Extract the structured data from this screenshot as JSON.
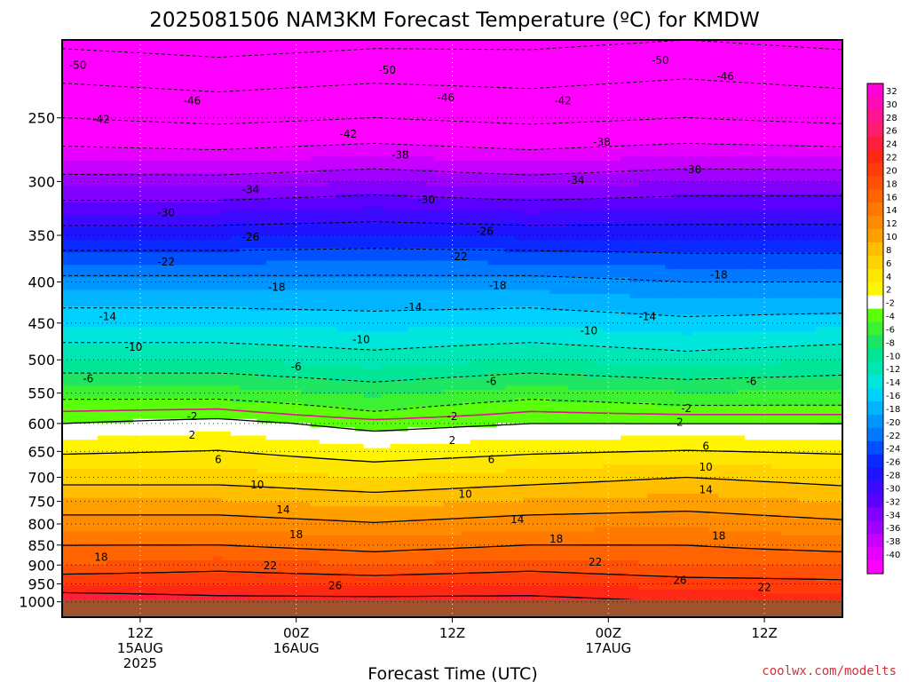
{
  "header": {
    "title": "2025081506 NAM3KM Forecast Temperature (ºC) for KMDW"
  },
  "footer": {
    "xlabel": "Forecast Time (UTC)",
    "credit": "coolwx.com/modelts"
  },
  "chart_data": {
    "type": "heatmap",
    "title": "2025081506 NAM3KM Forecast Temperature (ºC) for KMDW",
    "xlabel": "Forecast Time (UTC)",
    "ylabel": "",
    "y_scale": "log-pressure",
    "y_unit": "hPa",
    "ylim": [
      1000,
      200
    ],
    "y_ticks": [
      250,
      300,
      350,
      400,
      450,
      500,
      550,
      600,
      650,
      700,
      750,
      800,
      850,
      900,
      950,
      1000
    ],
    "x_range_hours": [
      0,
      60
    ],
    "x_ticks": [
      {
        "hour": 6,
        "label": [
          "12Z",
          "15AUG",
          "2025"
        ]
      },
      {
        "hour": 18,
        "label": [
          "00Z",
          "16AUG"
        ]
      },
      {
        "hour": 30,
        "label": [
          "12Z"
        ]
      },
      {
        "hour": 42,
        "label": [
          "00Z",
          "17AUG"
        ]
      },
      {
        "hour": 54,
        "label": [
          "12Z"
        ]
      }
    ],
    "grid": true,
    "colorbar": {
      "placement": "right",
      "labels": [
        32,
        30,
        28,
        26,
        24,
        22,
        20,
        18,
        16,
        14,
        12,
        10,
        8,
        6,
        4,
        2,
        -2,
        -4,
        -6,
        -8,
        -10,
        -12,
        -14,
        -16,
        -18,
        -20,
        -22,
        -24,
        -26,
        -28,
        -30,
        -32,
        -34,
        -36,
        -38,
        -40
      ],
      "colors": [
        "#ff00d8",
        "#ff0ab6",
        "#ff1492",
        "#ff1e6e",
        "#ff1e3c",
        "#ff2814",
        "#ff3c0a",
        "#ff5005",
        "#ff6400",
        "#ff7800",
        "#ff8c00",
        "#ffa000",
        "#ffbe00",
        "#ffd200",
        "#ffe600",
        "#fff500",
        "#ffffff",
        "#5aff0a",
        "#3cf032",
        "#1ee664",
        "#00e696",
        "#00e6b4",
        "#00e6dc",
        "#00d2ff",
        "#00b4ff",
        "#0096ff",
        "#0078ff",
        "#0050ff",
        "#0a28ff",
        "#1e14ff",
        "#3c0aff",
        "#5a00ff",
        "#8200ff",
        "#a000ff",
        "#c800ff",
        "#e600ff",
        "#ff00ff"
      ]
    },
    "hours": [
      0,
      12,
      24,
      36,
      48,
      60
    ],
    "profiles": [
      {
        "hour": 0,
        "levels": [
          [
            1000,
            28
          ],
          [
            900,
            20
          ],
          [
            850,
            18
          ],
          [
            700,
            9
          ],
          [
            600,
            2
          ],
          [
            560,
            -2
          ],
          [
            500,
            -8
          ],
          [
            400,
            -17
          ],
          [
            300,
            -33
          ],
          [
            250,
            -42
          ],
          [
            200,
            -51
          ]
        ]
      },
      {
        "hour": 12,
        "levels": [
          [
            1000,
            27
          ],
          [
            900,
            21
          ],
          [
            850,
            18
          ],
          [
            700,
            9
          ],
          [
            600,
            3
          ],
          [
            560,
            -2
          ],
          [
            500,
            -8
          ],
          [
            400,
            -17
          ],
          [
            300,
            -33
          ],
          [
            250,
            -43
          ],
          [
            200,
            -52
          ]
        ]
      },
      {
        "hour": 24,
        "levels": [
          [
            1000,
            27
          ],
          [
            900,
            20
          ],
          [
            850,
            17
          ],
          [
            700,
            8
          ],
          [
            600,
            1
          ],
          [
            580,
            -2
          ],
          [
            500,
            -9
          ],
          [
            400,
            -17
          ],
          [
            300,
            -32
          ],
          [
            250,
            -42
          ],
          [
            200,
            -51
          ]
        ]
      },
      {
        "hour": 36,
        "levels": [
          [
            1000,
            27
          ],
          [
            900,
            21
          ],
          [
            850,
            18
          ],
          [
            700,
            9
          ],
          [
            600,
            2
          ],
          [
            560,
            -2
          ],
          [
            500,
            -8
          ],
          [
            400,
            -17
          ],
          [
            300,
            -33
          ],
          [
            250,
            -43
          ],
          [
            200,
            -51
          ]
        ]
      },
      {
        "hour": 48,
        "levels": [
          [
            1000,
            26
          ],
          [
            900,
            20
          ],
          [
            850,
            18
          ],
          [
            700,
            10
          ],
          [
            600,
            2
          ],
          [
            570,
            -2
          ],
          [
            500,
            -9
          ],
          [
            400,
            -18
          ],
          [
            300,
            -32
          ],
          [
            250,
            -42
          ],
          [
            200,
            -50
          ]
        ]
      },
      {
        "hour": 60,
        "levels": [
          [
            1000,
            25
          ],
          [
            900,
            20
          ],
          [
            850,
            17
          ],
          [
            700,
            9
          ],
          [
            600,
            2
          ],
          [
            570,
            -2
          ],
          [
            500,
            -8
          ],
          [
            400,
            -18
          ],
          [
            300,
            -32
          ],
          [
            250,
            -43
          ],
          [
            200,
            -51
          ]
        ]
      }
    ],
    "contour_labels": [
      {
        "text": "-50",
        "hour": 1.2,
        "p": 215
      },
      {
        "text": "-50",
        "hour": 25,
        "p": 218
      },
      {
        "text": "-50",
        "hour": 46,
        "p": 212
      },
      {
        "text": "-46",
        "hour": 10,
        "p": 238
      },
      {
        "text": "-46",
        "hour": 29.5,
        "p": 236
      },
      {
        "text": "-46",
        "hour": 51,
        "p": 222
      },
      {
        "text": "-42",
        "hour": 3,
        "p": 251
      },
      {
        "text": "-42",
        "hour": 22,
        "p": 262
      },
      {
        "text": "-42",
        "hour": 38.5,
        "p": 238
      },
      {
        "text": "-38",
        "hour": 26,
        "p": 278
      },
      {
        "text": "-38",
        "hour": 41.5,
        "p": 268
      },
      {
        "text": "-34",
        "hour": 14.5,
        "p": 307
      },
      {
        "text": "-34",
        "hour": 39.5,
        "p": 299
      },
      {
        "text": "-30",
        "hour": 8,
        "p": 328
      },
      {
        "text": "-30",
        "hour": 28,
        "p": 316
      },
      {
        "text": "-30",
        "hour": 48.5,
        "p": 290
      },
      {
        "text": "-26",
        "hour": 14.5,
        "p": 352
      },
      {
        "text": "-26",
        "hour": 32.5,
        "p": 346
      },
      {
        "text": "-22",
        "hour": 8,
        "p": 378
      },
      {
        "text": "-22",
        "hour": 30.5,
        "p": 372
      },
      {
        "text": "-18",
        "hour": 16.5,
        "p": 406
      },
      {
        "text": "-18",
        "hour": 33.5,
        "p": 404
      },
      {
        "text": "-18",
        "hour": 50.5,
        "p": 392
      },
      {
        "text": "-14",
        "hour": 3.5,
        "p": 442
      },
      {
        "text": "-14",
        "hour": 27,
        "p": 430
      },
      {
        "text": "-14",
        "hour": 45,
        "p": 442
      },
      {
        "text": "-10",
        "hour": 5.5,
        "p": 482
      },
      {
        "text": "-10",
        "hour": 23,
        "p": 472
      },
      {
        "text": "-10",
        "hour": 40.5,
        "p": 460
      },
      {
        "text": "-6",
        "hour": 2,
        "p": 528
      },
      {
        "text": "-6",
        "hour": 18,
        "p": 510
      },
      {
        "text": "-6",
        "hour": 33,
        "p": 532
      },
      {
        "text": "-6",
        "hour": 53,
        "p": 532
      },
      {
        "text": "-2",
        "hour": 10,
        "p": 588
      },
      {
        "text": "-2",
        "hour": 30,
        "p": 588
      },
      {
        "text": "-2",
        "hour": 48,
        "p": 575
      },
      {
        "text": "2",
        "hour": 10,
        "p": 620
      },
      {
        "text": "2",
        "hour": 30,
        "p": 630
      },
      {
        "text": "2",
        "hour": 47.5,
        "p": 598
      },
      {
        "text": "6",
        "hour": 12,
        "p": 665
      },
      {
        "text": "6",
        "hour": 33,
        "p": 665
      },
      {
        "text": "6",
        "hour": 49.5,
        "p": 640
      },
      {
        "text": "10",
        "hour": 15,
        "p": 715
      },
      {
        "text": "10",
        "hour": 31,
        "p": 735
      },
      {
        "text": "10",
        "hour": 49.5,
        "p": 680
      },
      {
        "text": "14",
        "hour": 17,
        "p": 768
      },
      {
        "text": "14",
        "hour": 35,
        "p": 790
      },
      {
        "text": "14",
        "hour": 49.5,
        "p": 725
      },
      {
        "text": "18",
        "hour": 3,
        "p": 880
      },
      {
        "text": "18",
        "hour": 18,
        "p": 825
      },
      {
        "text": "18",
        "hour": 38,
        "p": 835
      },
      {
        "text": "18",
        "hour": 50.5,
        "p": 828
      },
      {
        "text": "22",
        "hour": 16,
        "p": 902
      },
      {
        "text": "22",
        "hour": 41,
        "p": 892
      },
      {
        "text": "22",
        "hour": 54,
        "p": 960
      },
      {
        "text": "26",
        "hour": 21,
        "p": 955
      },
      {
        "text": "26",
        "hour": 47.5,
        "p": 940
      }
    ]
  }
}
